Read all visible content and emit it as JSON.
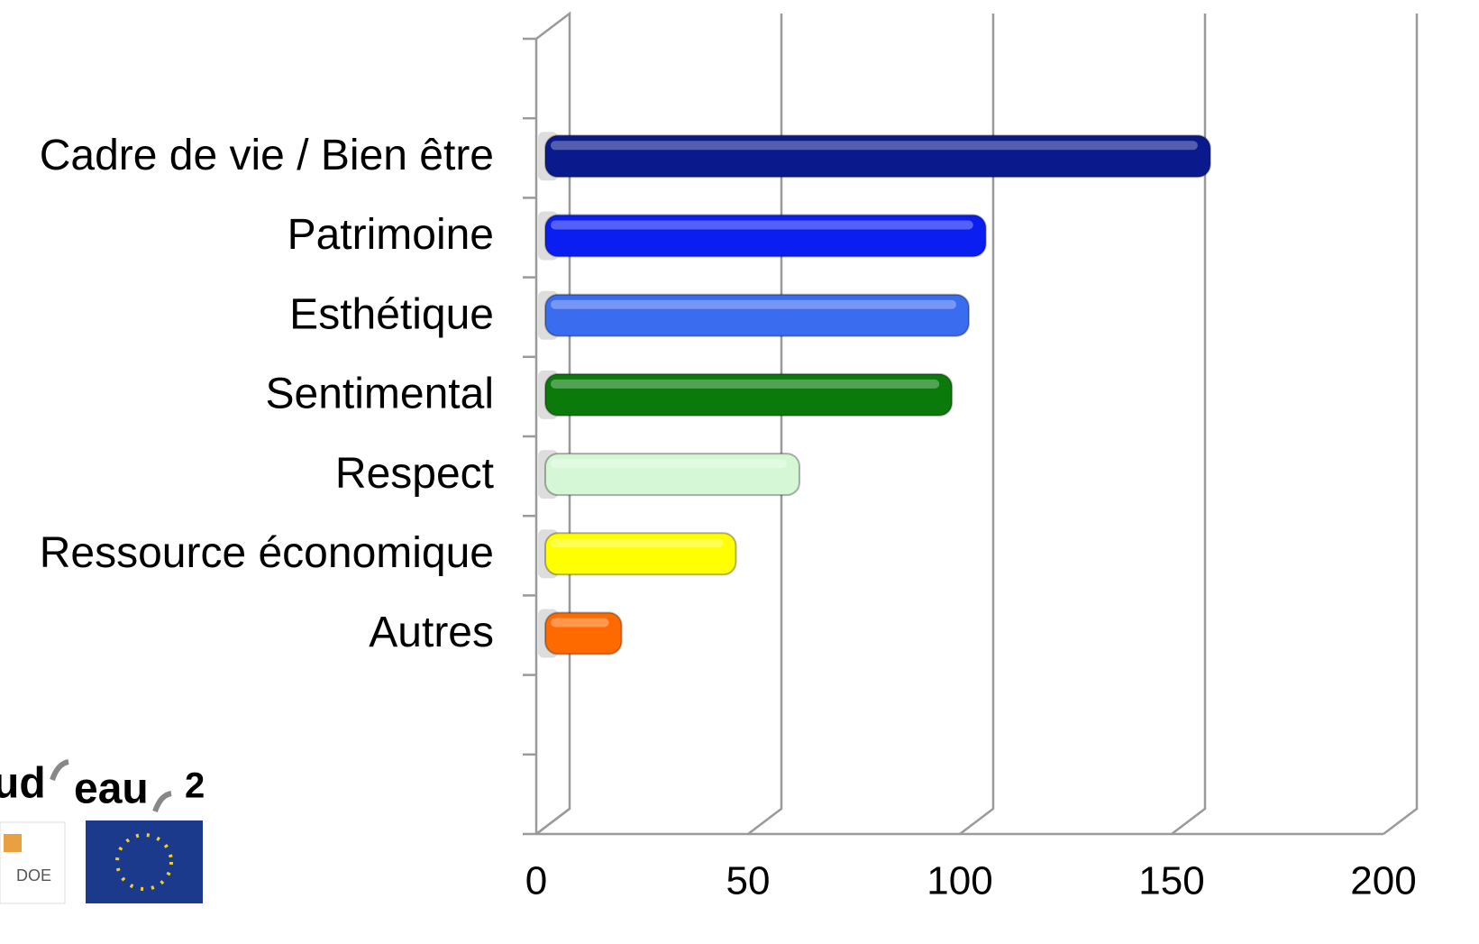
{
  "chart_data": {
    "type": "bar3d_horizontal",
    "categories": [
      null,
      "Cadre de vie / Bien être",
      "Patrimoine",
      "Esthétique",
      "Sentimental",
      "Respect",
      "Ressource économique",
      "Autres",
      null,
      null
    ],
    "values": [
      null,
      157,
      104,
      100,
      96,
      60,
      45,
      18,
      null,
      null
    ],
    "colors": [
      null,
      "#0a1a8c",
      "#0a1ef2",
      "#3a6cf0",
      "#0a7a0a",
      "#d6f7d6",
      "#ffff00",
      "#ff6a00",
      null,
      null
    ],
    "xlim": [
      0,
      200
    ],
    "xticks": [
      0,
      50,
      100,
      150,
      200
    ],
    "grid": true,
    "logo": {
      "parts": [
        "ud",
        "eau",
        "2"
      ],
      "small": "DOE"
    }
  }
}
